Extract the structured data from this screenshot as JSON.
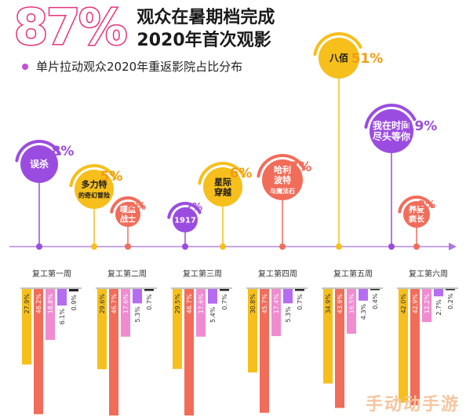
{
  "headline": {
    "percent": "87%",
    "line1": "观众在暑期档完成",
    "line2": "2020年首次观影"
  },
  "subtitle": "单片拉动观众2020年重返影院占比分布",
  "colors": {
    "purple": "#9b4ce0",
    "yellow": "#f6bf1c",
    "coral": "#f26c5a",
    "magenta_text": "#e8317a",
    "orange_text": "#f39c12",
    "pink_bar": "#f08bd0",
    "violet_bar": "#b56cf0",
    "black_bar": "#222222"
  },
  "chart_data": {
    "type": "bar",
    "categories": [
      "复工第一周",
      "复工第二周",
      "复工第三周",
      "复工第四周",
      "复工第五周",
      "复工第六周"
    ],
    "series": [
      {
        "color": "#f6bf1c",
        "values": [
          27.9,
          29.6,
          29.5,
          30.8,
          34.9,
          42.0
        ]
      },
      {
        "color": "#f26c5a",
        "values": [
          46.2,
          46.7,
          46.7,
          45.7,
          43.9,
          42.9
        ]
      },
      {
        "color": "#f08bd0",
        "values": [
          18.8,
          17.6,
          17.6,
          17.4,
          16.5,
          12.2
        ]
      },
      {
        "color": "#b56cf0",
        "values": [
          6.1,
          5.3,
          5.4,
          5.3,
          4.3,
          2.7
        ]
      },
      {
        "color": "#222222",
        "values": [
          0.9,
          0.7,
          0.7,
          0.7,
          0.4,
          0.2
        ]
      }
    ],
    "value_labels": [
      [
        "27.9%",
        "46.2%",
        "18.8%",
        "6.1%",
        "0.9%"
      ],
      [
        "29.6%",
        "46.7%",
        "17.6%",
        "5.3%",
        "0.7%"
      ],
      [
        "29.5%",
        "46.7%",
        "17.6%",
        "5.4%",
        "0.7%"
      ],
      [
        "30.8%",
        "45.7%",
        "17.4%",
        "5.3%",
        "0.7%"
      ],
      [
        "34.9%",
        "43.9%",
        "16.5%",
        "4.3%",
        "0.4%"
      ],
      [
        "42.0%",
        "42.9%",
        "12.2%",
        "2.7%",
        "0.2%"
      ]
    ],
    "films": [
      {
        "name": "误杀",
        "pct": "8%",
        "value": 8,
        "color": "#9b4ce0"
      },
      {
        "name": "多力特\n的奇幻冒险",
        "pct": "5%",
        "value": 5,
        "color": "#f6bf1c"
      },
      {
        "name": "喋血\n战士",
        "pct": "2%",
        "value": 2,
        "color": "#f26c5a"
      },
      {
        "name": "1917",
        "pct": "2%",
        "value": 2,
        "color": "#9b4ce0"
      },
      {
        "name": "星际\n穿越",
        "pct": "6%",
        "value": 6,
        "color": "#f6bf1c"
      },
      {
        "name": "哈利\n波特\n与魔法石",
        "pct": "7%",
        "value": 7,
        "color": "#f26c5a"
      },
      {
        "name": "八佰",
        "pct": "51%",
        "value": 51,
        "color": "#f6bf1c"
      },
      {
        "name": "我在时间\n尽头等你",
        "pct": "19%",
        "value": 19,
        "color": "#9b4ce0"
      },
      {
        "name": "养麦\n疯长",
        "pct": "2%",
        "value": 2,
        "color": "#f26c5a"
      }
    ]
  },
  "watermark": "手动动手游"
}
